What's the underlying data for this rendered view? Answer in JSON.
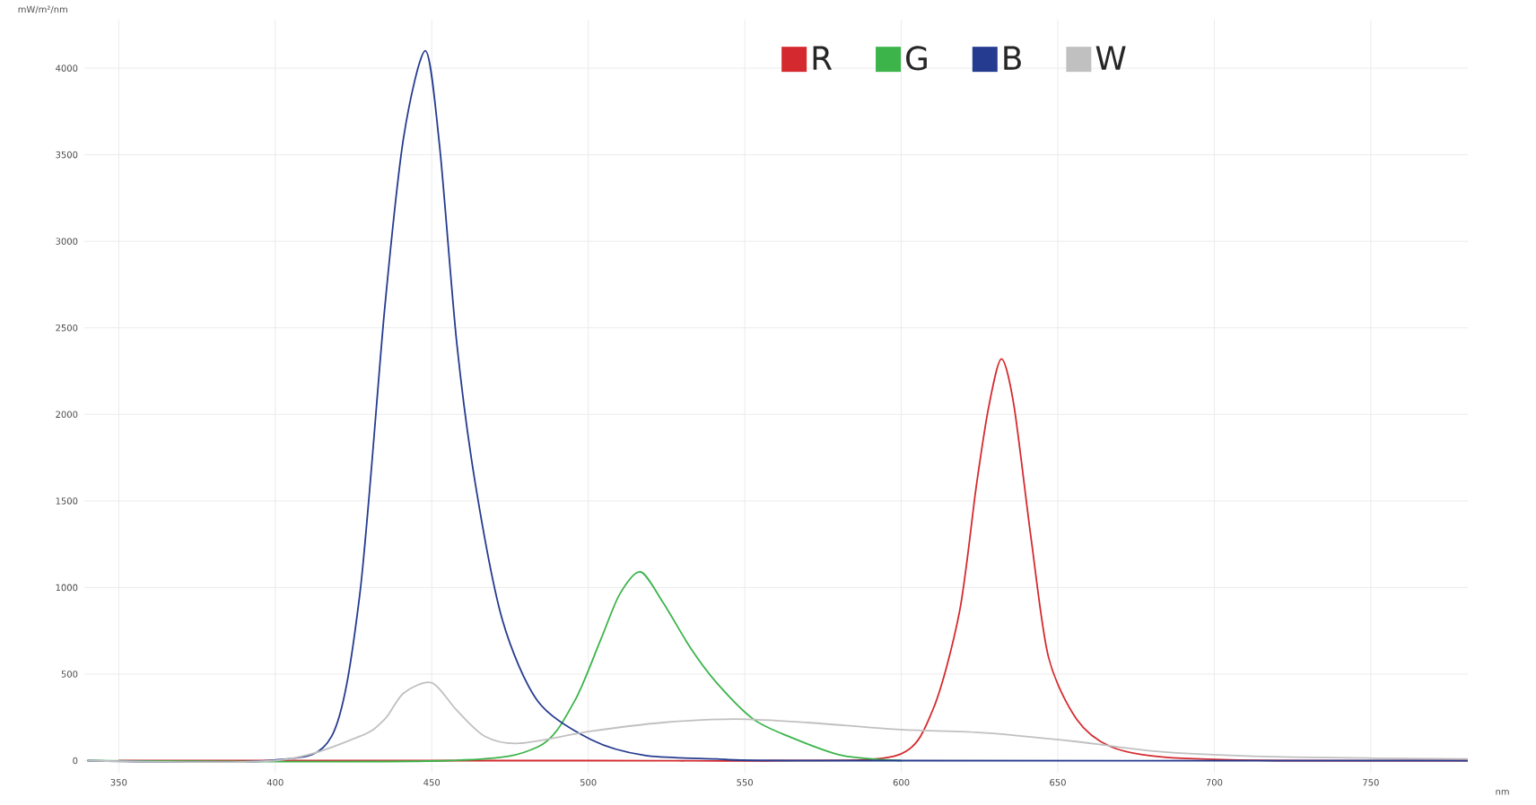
{
  "chart_data": {
    "type": "line",
    "xlabel": "nm",
    "ylabel": "mW/m²/nm",
    "xlim": [
      339,
      781
    ],
    "ylim": [
      -70,
      4280
    ],
    "xticks": [
      350,
      400,
      450,
      500,
      550,
      600,
      650,
      700,
      750
    ],
    "yticks": [
      0,
      500,
      1000,
      1500,
      2000,
      2500,
      3000,
      3500,
      4000
    ],
    "grid": true,
    "legend": "top",
    "marker": "none",
    "line_style": "solid",
    "series": [
      {
        "name": "R",
        "color": "#d42a2f",
        "x": [
          350,
          500,
          560,
          598.6,
          610,
          618.6,
          624,
          628,
          632,
          636,
          641.5,
          647,
          656,
          667,
          684,
          720,
          781
        ],
        "values": [
          0,
          0,
          0,
          30,
          290,
          860,
          1590,
          2050,
          2320,
          2050,
          1280,
          600,
          240,
          80,
          20,
          0,
          0
        ]
      },
      {
        "name": "G",
        "color": "#3cb44a",
        "x": [
          340,
          455,
          484,
          495.5,
          504,
          510,
          516.7,
          524,
          532.7,
          541,
          552.7,
          564,
          581,
          600
        ],
        "values": [
          0,
          0,
          80,
          340,
          700,
          960,
          1090,
          910,
          650,
          450,
          240,
          140,
          30,
          0
        ]
      },
      {
        "name": "B",
        "color": "#253b8f",
        "x": [
          340,
          398,
          418,
          427,
          435,
          441,
          448,
          452.5,
          458,
          464,
          472.6,
          484,
          501,
          518,
          541,
          570,
          781
        ],
        "values": [
          0,
          0,
          140,
          960,
          2620,
          3600,
          4100,
          3550,
          2410,
          1590,
          810,
          340,
          120,
          30,
          10,
          0,
          0
        ]
      },
      {
        "name": "W",
        "color": "#c0c0c0",
        "x": [
          340,
          400,
          427,
          435,
          441,
          450,
          458,
          467,
          478,
          501,
          524,
          547,
          570,
          598.6,
          627,
          656,
          684,
          725,
          781
        ],
        "values": [
          0,
          0,
          140,
          240,
          390,
          450,
          290,
          140,
          100,
          170,
          220,
          240,
          220,
          180,
          160,
          110,
          50,
          20,
          10
        ]
      }
    ]
  }
}
